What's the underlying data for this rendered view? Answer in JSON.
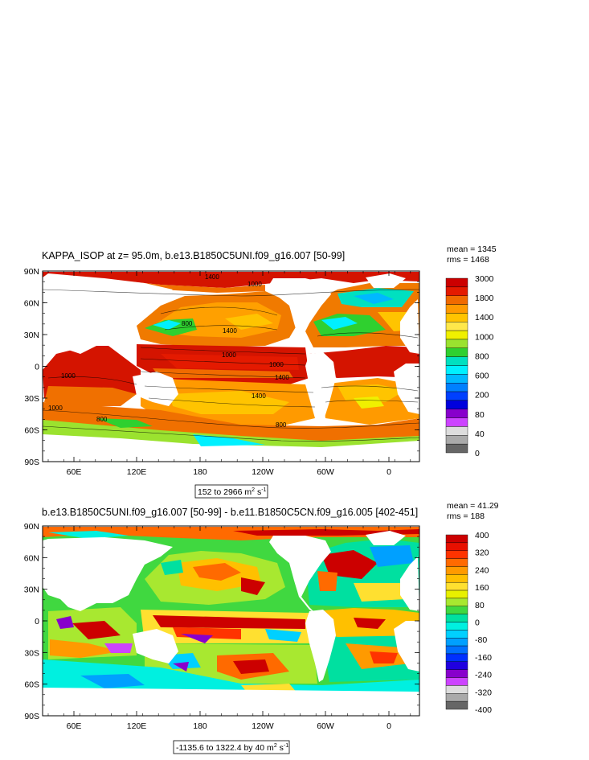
{
  "chart_data": [
    {
      "type": "heatmap",
      "title": "KAPPA_ISOP at z=  95.0m, b.e13.B1850C5UNI.f09_g16.007 [50-99]",
      "stats": {
        "mean": "mean = 1345",
        "rms": "rms = 1468"
      },
      "range_label": "152 to 2966 m",
      "range_units_sup": [
        "2",
        "-1"
      ],
      "range_units_mid": " s",
      "x_ticks": [
        "60E",
        "120E",
        "180",
        "120W",
        "60W",
        "0"
      ],
      "y_ticks": [
        "90N",
        "60N",
        "30N",
        "0",
        "30S",
        "60S",
        "90S"
      ],
      "colorbar": {
        "labels": [
          "3000",
          "1800",
          "1400",
          "1000",
          "800",
          "600",
          "200",
          "80",
          "40",
          "0"
        ],
        "colors": [
          "#cc0000",
          "#e41a00",
          "#f06a00",
          "#ff9a00",
          "#ffc400",
          "#ffe84a",
          "#f0f000",
          "#9be22f",
          "#2fd02f",
          "#00e0c0",
          "#00f0ff",
          "#00b8ff",
          "#0080ff",
          "#0040ff",
          "#0000dd",
          "#8800cc",
          "#cc44ff",
          "#dddddd",
          "#aaaaaa",
          "#666666"
        ]
      },
      "contour_labels": [
        "1400",
        "1000",
        "800",
        "1400",
        "1000",
        "1400",
        "1000",
        "1400",
        "800",
        "800",
        "1000",
        "1000"
      ]
    },
    {
      "type": "heatmap",
      "title": "b.e13.B1850C5UNI.f09_g16.007 [50-99] - b.e11.B1850C5CN.f09_g16.005 [402-451]",
      "stats": {
        "mean": "mean = 41.29",
        "rms": "rms = 188"
      },
      "range_label": "-1135.6 to 1322.4 by 40 m",
      "range_units_sup": [
        "2",
        "-1"
      ],
      "range_units_mid": " s",
      "x_ticks": [
        "60E",
        "120E",
        "180",
        "120W",
        "60W",
        "0"
      ],
      "y_ticks": [
        "90N",
        "60N",
        "30N",
        "0",
        "30S",
        "60S",
        "90S"
      ],
      "colorbar": {
        "labels": [
          "400",
          "320",
          "240",
          "160",
          "80",
          "0",
          "-80",
          "-160",
          "-240",
          "-320",
          "-400"
        ],
        "colors": [
          "#cc0000",
          "#e81000",
          "#ff3300",
          "#ff6a00",
          "#ff9a00",
          "#ffc000",
          "#ffe030",
          "#e8f000",
          "#a8e830",
          "#40d840",
          "#00e0a0",
          "#00f0e0",
          "#00d0ff",
          "#00a0ff",
          "#0070ff",
          "#0030ff",
          "#2000e0",
          "#8800cc",
          "#cc44ff",
          "#dddddd",
          "#aaaaaa",
          "#666666"
        ]
      }
    }
  ]
}
